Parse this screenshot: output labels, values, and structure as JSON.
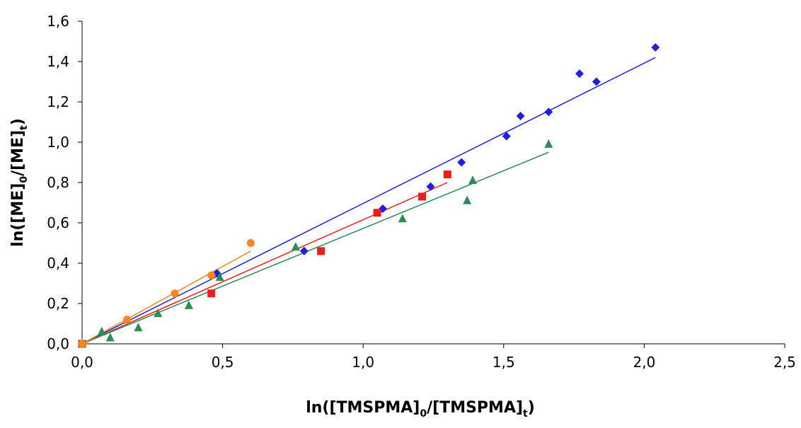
{
  "chart_data": {
    "type": "scatter",
    "xlabel": {
      "main": "ln([TMSPMA]",
      "sub0": "0",
      "mid": "/[TMSPMA]",
      "subt": "t",
      "end": ")"
    },
    "ylabel": {
      "main": "ln([ME]",
      "sub0": "0",
      "mid": "/[ME]",
      "subt": "t",
      "end": ")"
    },
    "xlim": [
      0,
      2.5
    ],
    "ylim": [
      0,
      1.6
    ],
    "x_ticks": [
      0.0,
      0.5,
      1.0,
      1.5,
      2.0,
      2.5
    ],
    "x_tick_labels": [
      "0,0",
      "0,5",
      "1,0",
      "1,5",
      "2,0",
      "2,5"
    ],
    "y_ticks": [
      0.0,
      0.2,
      0.4,
      0.6,
      0.8,
      1.0,
      1.2,
      1.4,
      1.6
    ],
    "y_tick_labels": [
      "0,0",
      "0,2",
      "0,4",
      "0,6",
      "0,8",
      "1,0",
      "1,2",
      "1,4",
      "1,6"
    ],
    "grid": false,
    "legend": "none",
    "series": [
      {
        "marker": "diamond",
        "color": "#1f1fe0",
        "points": [
          [
            0.0,
            0.0
          ],
          [
            0.48,
            0.35
          ],
          [
            0.79,
            0.46
          ],
          [
            1.07,
            0.67
          ],
          [
            1.24,
            0.78
          ],
          [
            1.35,
            0.9
          ],
          [
            1.51,
            1.03
          ],
          [
            1.56,
            1.13
          ],
          [
            1.66,
            1.15
          ],
          [
            1.77,
            1.34
          ],
          [
            1.83,
            1.3
          ],
          [
            2.04,
            1.47
          ]
        ],
        "trend": [
          [
            0.0,
            0.0
          ],
          [
            2.04,
            1.42
          ]
        ]
      },
      {
        "marker": "square",
        "color": "#ee1c1c",
        "points": [
          [
            0.0,
            0.0
          ],
          [
            0.46,
            0.25
          ],
          [
            0.85,
            0.46
          ],
          [
            1.05,
            0.65
          ],
          [
            1.21,
            0.73
          ],
          [
            1.3,
            0.84
          ]
        ],
        "trend": [
          [
            0.0,
            0.0
          ],
          [
            1.3,
            0.8
          ]
        ]
      },
      {
        "marker": "triangle",
        "color": "#2e8b57",
        "points": [
          [
            0.0,
            0.0
          ],
          [
            0.07,
            0.06
          ],
          [
            0.1,
            0.03
          ],
          [
            0.2,
            0.08
          ],
          [
            0.27,
            0.15
          ],
          [
            0.38,
            0.19
          ],
          [
            0.49,
            0.33
          ],
          [
            0.76,
            0.48
          ],
          [
            1.14,
            0.62
          ],
          [
            1.37,
            0.71
          ],
          [
            1.39,
            0.81
          ],
          [
            1.66,
            0.99
          ]
        ],
        "trend": [
          [
            0.0,
            0.0
          ],
          [
            1.66,
            0.95
          ]
        ]
      },
      {
        "marker": "circle",
        "color": "#f7861d",
        "points": [
          [
            0.0,
            0.0
          ],
          [
            0.16,
            0.12
          ],
          [
            0.33,
            0.25
          ],
          [
            0.46,
            0.34
          ],
          [
            0.6,
            0.5
          ]
        ],
        "trend": [
          [
            0.0,
            0.0
          ],
          [
            0.6,
            0.46
          ]
        ]
      }
    ]
  }
}
